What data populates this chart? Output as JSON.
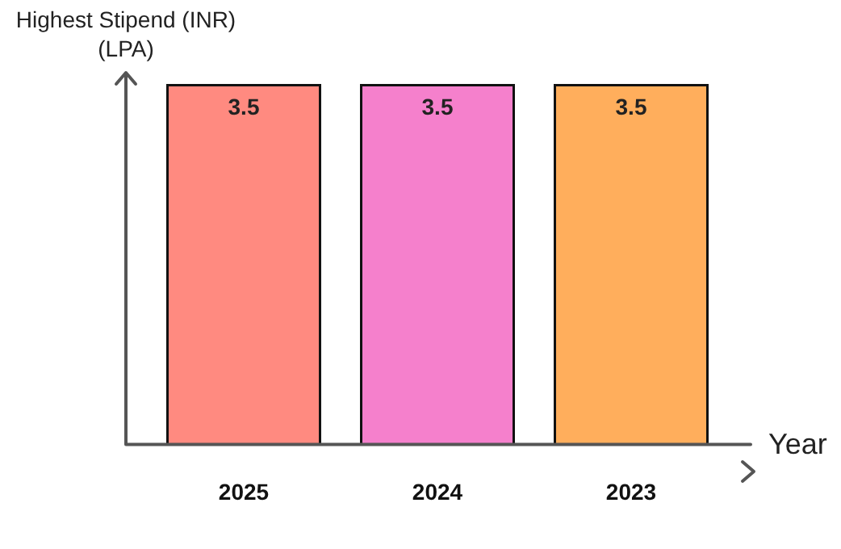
{
  "chart_data": {
    "type": "bar",
    "ylabel": "Highest Stipend (INR)\n(LPA)",
    "xlabel": "Year",
    "categories": [
      "2025",
      "2024",
      "2023"
    ],
    "values": [
      3.5,
      3.5,
      3.5
    ],
    "data_labels": true,
    "colors": [
      "#ff8a80",
      "#f580cc",
      "#ffae5c"
    ],
    "grid": false,
    "legend": false
  }
}
